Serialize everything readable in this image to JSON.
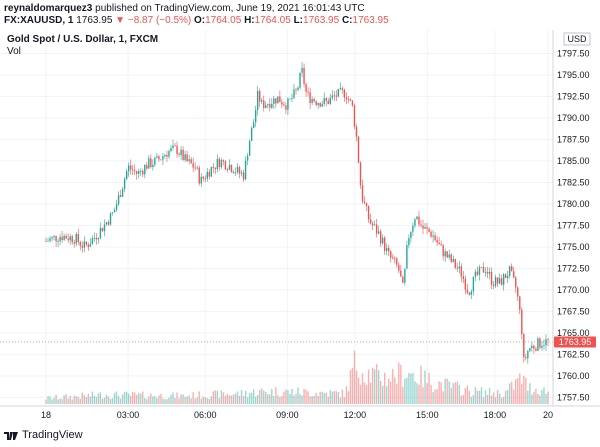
{
  "header": {
    "user": "reynaldomarquez3",
    "published": "published on TradingView.com, June 19, 2021 16:01:43 UTC",
    "symbol": "FX:XAUUSD, 1",
    "last": "1763.95",
    "change_icon": "down-triangle-icon",
    "change": "−8.87 (−0.5%)",
    "o_label": "O:",
    "o_val": "1764.05",
    "h_label": "H:",
    "h_val": "1764.05",
    "l_label": "L:",
    "l_val": "1763.95",
    "c_label": "C:",
    "c_val": "1763.95"
  },
  "chart_data": {
    "type": "candlestick",
    "title": "Gold Spot / U.S. Dollar, 1, FXCM",
    "volume_label": "Vol",
    "currency": "USD",
    "last_price_label": "1763.95",
    "y_range": [
      1756.5,
      1800.0
    ],
    "y_ticks": [
      "1797.50",
      "1795.00",
      "1792.50",
      "1790.00",
      "1787.50",
      "1785.00",
      "1782.50",
      "1780.00",
      "1777.50",
      "1775.00",
      "1772.50",
      "1770.00",
      "1767.50",
      "1765.00",
      "1762.50",
      "1760.00",
      "1757.50"
    ],
    "x_ticks": [
      "18",
      "03:00",
      "06:00",
      "09:00",
      "12:00",
      "15:00",
      "18:00",
      "20"
    ],
    "grid": true,
    "price_path": [
      [
        0,
        1775.7
      ],
      [
        0.03,
        1776.3
      ],
      [
        0.06,
        1776.0
      ],
      [
        0.08,
        1775.0
      ],
      [
        0.1,
        1776.1
      ],
      [
        0.12,
        1777.5
      ],
      [
        0.14,
        1779.0
      ],
      [
        0.155,
        1781.5
      ],
      [
        0.17,
        1784.3
      ],
      [
        0.19,
        1783.5
      ],
      [
        0.21,
        1784.6
      ],
      [
        0.23,
        1785.0
      ],
      [
        0.25,
        1786.0
      ],
      [
        0.27,
        1786.4
      ],
      [
        0.29,
        1785.0
      ],
      [
        0.31,
        1784.2
      ],
      [
        0.32,
        1782.6
      ],
      [
        0.34,
        1784.0
      ],
      [
        0.36,
        1785.0
      ],
      [
        0.38,
        1784.5
      ],
      [
        0.4,
        1783.6
      ],
      [
        0.41,
        1783.4
      ],
      [
        0.42,
        1787.0
      ],
      [
        0.43,
        1789.5
      ],
      [
        0.44,
        1793.0
      ],
      [
        0.445,
        1791.5
      ],
      [
        0.46,
        1791.8
      ],
      [
        0.48,
        1792.3
      ],
      [
        0.5,
        1791.5
      ],
      [
        0.52,
        1793.2
      ],
      [
        0.53,
        1795.5
      ],
      [
        0.54,
        1792.6
      ],
      [
        0.56,
        1792.0
      ],
      [
        0.58,
        1791.8
      ],
      [
        0.6,
        1792.6
      ],
      [
        0.62,
        1793.0
      ],
      [
        0.635,
        1791.2
      ],
      [
        0.645,
        1787.0
      ],
      [
        0.65,
        1783.0
      ],
      [
        0.655,
        1780.8
      ],
      [
        0.67,
        1778.0
      ],
      [
        0.69,
        1776.5
      ],
      [
        0.71,
        1774.0
      ],
      [
        0.73,
        1772.5
      ],
      [
        0.74,
        1770.0
      ],
      [
        0.75,
        1776.0
      ],
      [
        0.765,
        1778.7
      ],
      [
        0.78,
        1777.2
      ],
      [
        0.8,
        1776.5
      ],
      [
        0.82,
        1774.6
      ],
      [
        0.84,
        1773.3
      ],
      [
        0.86,
        1772.0
      ],
      [
        0.875,
        1769.8
      ],
      [
        0.89,
        1771.5
      ],
      [
        0.91,
        1772.6
      ],
      [
        0.925,
        1771.0
      ],
      [
        0.94,
        1770.8
      ],
      [
        0.96,
        1772.2
      ],
      [
        0.975,
        1770.0
      ],
      [
        0.985,
        1766.0
      ],
      [
        0.99,
        1761.5
      ],
      [
        1.0,
        1763.2
      ],
      [
        1.03,
        1764.0
      ],
      [
        1.04,
        1763.95
      ]
    ],
    "volume_profile": [
      [
        0,
        0.1
      ],
      [
        0.12,
        0.16
      ],
      [
        0.28,
        0.14
      ],
      [
        0.4,
        0.18
      ],
      [
        0.46,
        0.22
      ],
      [
        0.55,
        0.2
      ],
      [
        0.62,
        0.18
      ],
      [
        0.64,
        0.7
      ],
      [
        0.66,
        0.55
      ],
      [
        0.7,
        0.45
      ],
      [
        0.75,
        0.55
      ],
      [
        0.8,
        0.38
      ],
      [
        0.88,
        0.22
      ],
      [
        0.95,
        0.18
      ],
      [
        0.985,
        0.45
      ],
      [
        1.0,
        0.28
      ],
      [
        1.04,
        0.22
      ]
    ]
  },
  "colors": {
    "up": "#26a69a",
    "down": "#ef5350",
    "last_price_bg": "#ef5350",
    "grid": "#f0f3fa",
    "text": "#131722"
  },
  "footer": {
    "logo_icon": "tradingview-logo-icon",
    "brand": "TradingView"
  }
}
